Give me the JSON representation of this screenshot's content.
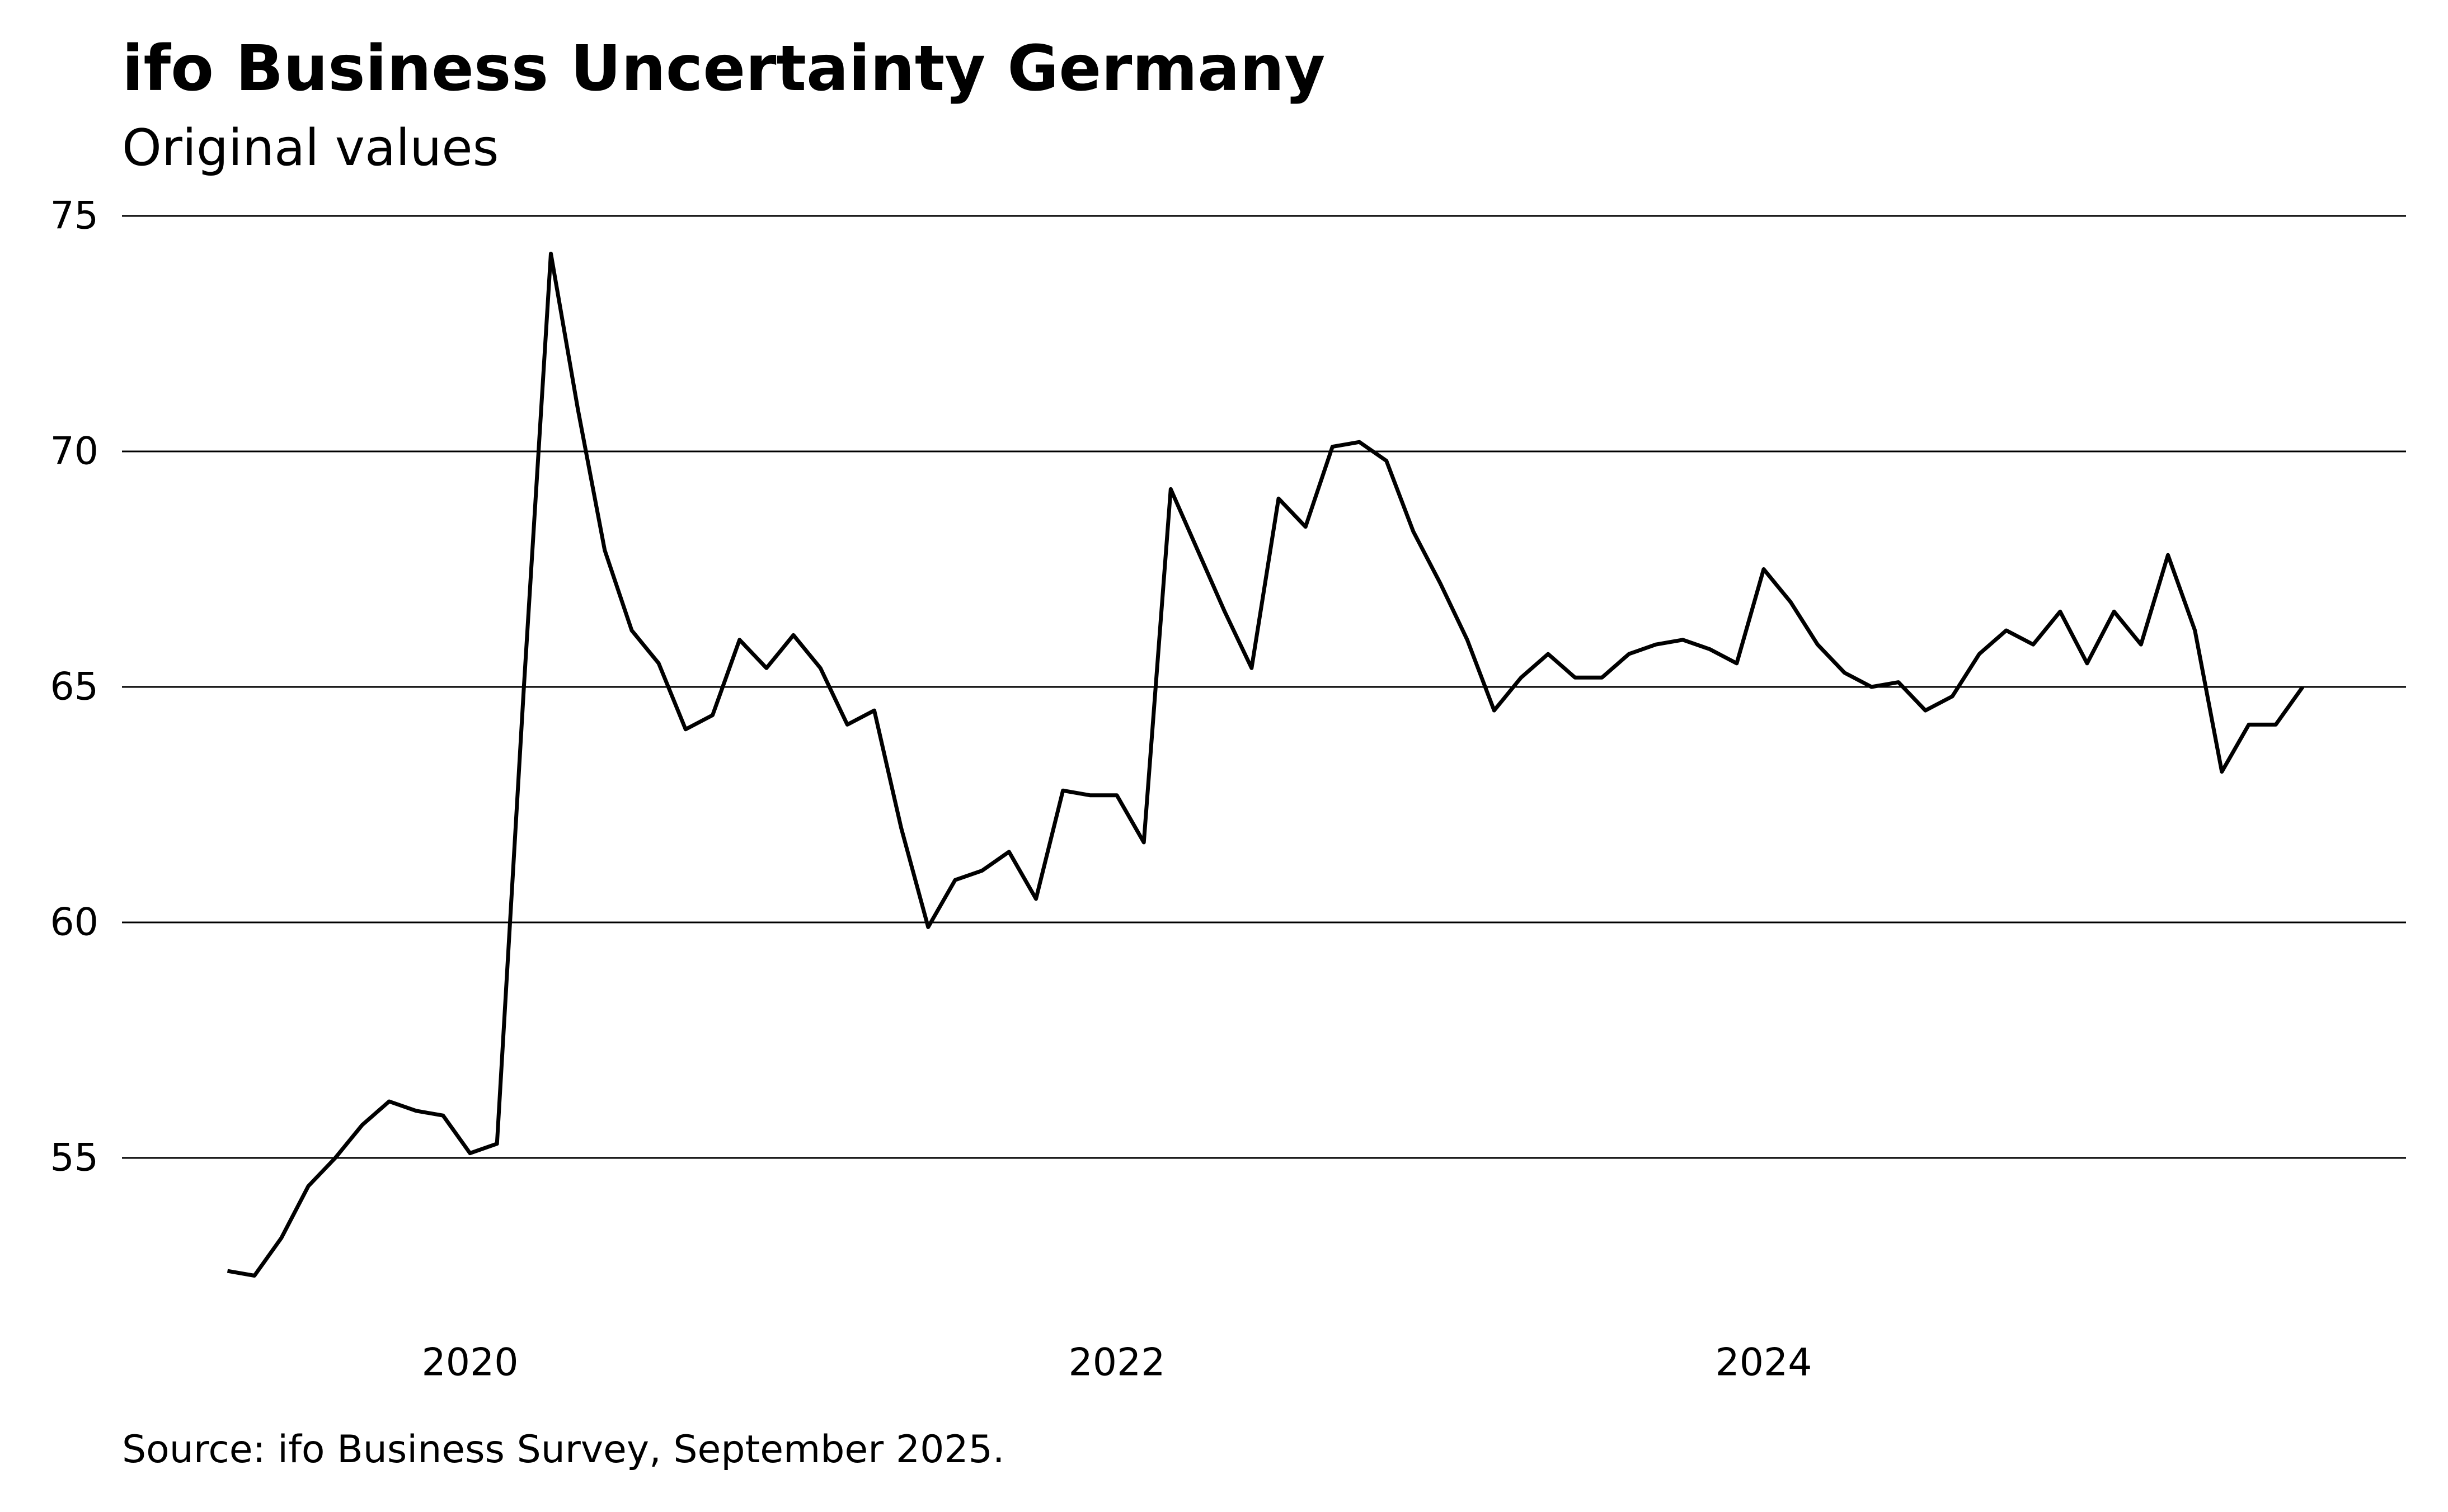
{
  "title": "ifo Business Uncertainty Germany",
  "subtitle": "Original values",
  "source": "Source: ifo Business Survey, September 2025.",
  "colors": {
    "line": "#000000",
    "grid": "#000000",
    "background": "#ffffff"
  },
  "chart_data": {
    "type": "line",
    "title": "ifo Business Uncertainty Germany",
    "subtitle": "Original values",
    "xlabel": "",
    "ylabel": "",
    "ylim": [
      51.5,
      75
    ],
    "y_ticks": [
      55,
      60,
      65,
      70,
      75
    ],
    "x_ticks": [
      2020,
      2022,
      2024
    ],
    "xlim": [
      "2019-01",
      "2025-12"
    ],
    "grid": "horizontal",
    "legend": "none",
    "series": [
      {
        "x": [
          "2019-04",
          "2019-05",
          "2019-06",
          "2019-07",
          "2019-08",
          "2019-09",
          "2019-10",
          "2019-11",
          "2019-12",
          "2020-01",
          "2020-02",
          "2020-03",
          "2020-04",
          "2020-05",
          "2020-06",
          "2020-07",
          "2020-08",
          "2020-09",
          "2020-10",
          "2020-11",
          "2020-12",
          "2021-01",
          "2021-02",
          "2021-03",
          "2021-04",
          "2021-05",
          "2021-06",
          "2021-07",
          "2021-08",
          "2021-09",
          "2021-10",
          "2021-11",
          "2021-12",
          "2022-01",
          "2022-02",
          "2022-03",
          "2022-04",
          "2022-05",
          "2022-06",
          "2022-07",
          "2022-08",
          "2022-09",
          "2022-10",
          "2022-11",
          "2022-12",
          "2023-01",
          "2023-02",
          "2023-03",
          "2023-04",
          "2023-05",
          "2023-06",
          "2023-07",
          "2023-08",
          "2023-09",
          "2023-10",
          "2023-11",
          "2023-12",
          "2024-01",
          "2024-02",
          "2024-03",
          "2024-04",
          "2024-05",
          "2024-06",
          "2024-07",
          "2024-08",
          "2024-09",
          "2024-10",
          "2024-11",
          "2024-12",
          "2025-01",
          "2025-02",
          "2025-03",
          "2025-04",
          "2025-05",
          "2025-06",
          "2025-07",
          "2025-08",
          "2025-09"
        ],
        "values": [
          52.6,
          52.5,
          53.3,
          54.4,
          55.0,
          55.7,
          56.2,
          56.0,
          55.9,
          55.1,
          55.3,
          65.0,
          74.2,
          70.9,
          67.9,
          66.2,
          65.5,
          64.1,
          64.4,
          66.0,
          65.4,
          66.1,
          65.4,
          64.2,
          64.5,
          62.0,
          59.9,
          60.9,
          61.1,
          61.5,
          60.5,
          62.8,
          62.7,
          62.7,
          61.7,
          69.2,
          67.9,
          66.6,
          65.4,
          69.0,
          68.4,
          70.1,
          70.2,
          69.8,
          68.3,
          67.2,
          66.0,
          64.5,
          65.2,
          65.7,
          65.2,
          65.2,
          65.7,
          65.9,
          66.0,
          65.8,
          65.5,
          67.5,
          66.8,
          65.9,
          65.3,
          65.0,
          65.1,
          64.5,
          64.8,
          65.7,
          66.2,
          65.9,
          66.6,
          65.5,
          66.6,
          65.9,
          67.8,
          66.2,
          63.2,
          64.2,
          64.2,
          65.0
        ]
      }
    ]
  }
}
